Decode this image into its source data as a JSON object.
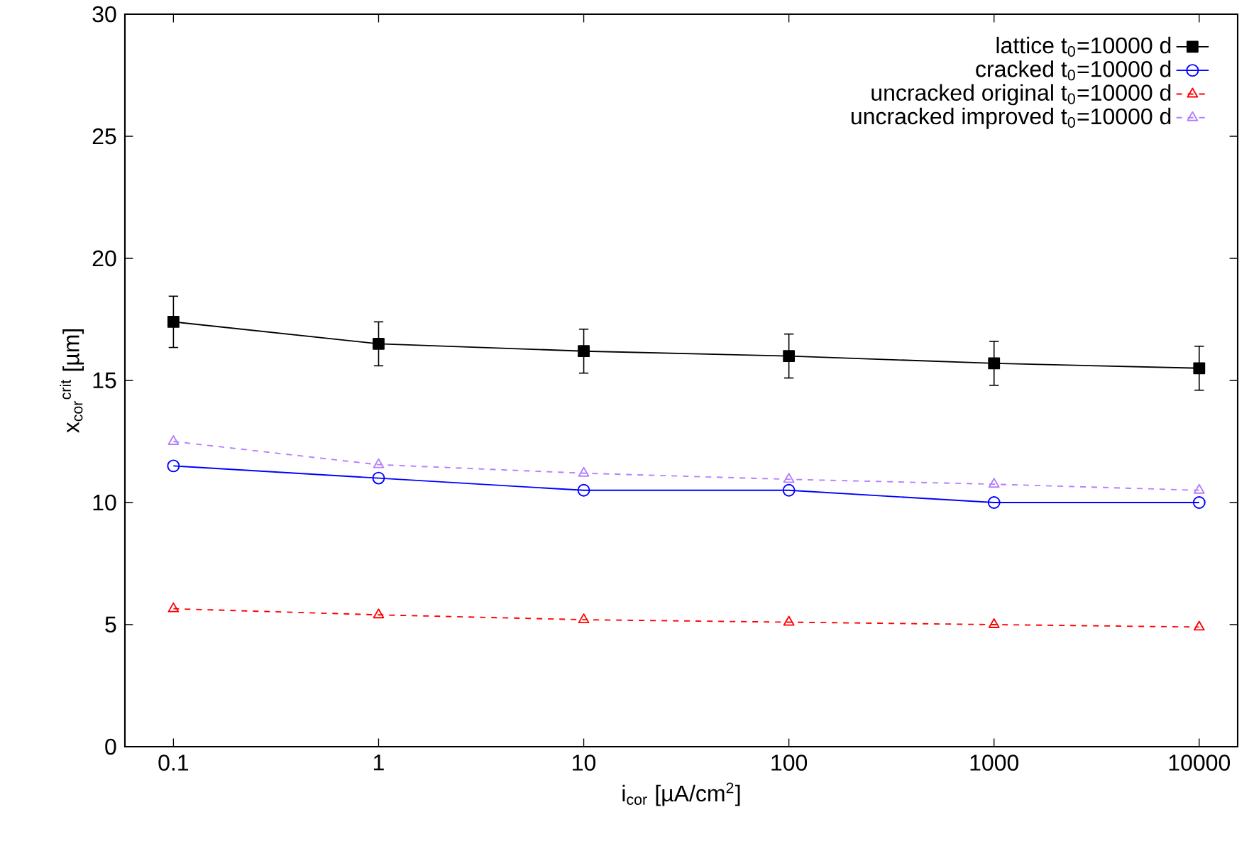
{
  "chart_data": {
    "type": "line",
    "xlabel": "i$_{cor}$ [µA/cm$^{2}$]",
    "ylabel": "x$_{cor}$$^{crit}$ [µm]",
    "log": "x",
    "xlim": [
      0.058,
      15400
    ],
    "ylim": [
      0,
      30
    ],
    "xticks": [
      0.1,
      1,
      10,
      100,
      1000,
      10000
    ],
    "yticks": [
      0,
      5,
      10,
      15,
      20,
      25,
      30
    ],
    "x": [
      0.1,
      1,
      10,
      100,
      1000,
      10000
    ],
    "legend": "top right",
    "grid": false,
    "series": [
      {
        "name": "lattice t$_{0}$=10000 d",
        "color": "#000000",
        "marker": "square",
        "line_style": "solid",
        "values": [
          17.4,
          16.5,
          16.2,
          16.0,
          15.7,
          15.5
        ],
        "errors": [
          1.05,
          0.9,
          0.9,
          0.9,
          0.9,
          0.9
        ]
      },
      {
        "name": "cracked t$_{0}$=10000 d",
        "color": "#0000ff",
        "marker": "circle",
        "line_style": "solid",
        "values": [
          11.5,
          11.0,
          10.5,
          10.5,
          10.0,
          10.0
        ]
      },
      {
        "name": "uncracked original t$_{0}$=10000 d",
        "color": "#ff0000",
        "marker": "triangle",
        "line_style": "dashed",
        "values": [
          5.65,
          5.4,
          5.2,
          5.1,
          5.0,
          4.9
        ]
      },
      {
        "name": "uncracked improved t$_{0}$=10000 d",
        "color": "#b57eff",
        "marker": "triangle",
        "line_style": "dashed",
        "values": [
          12.5,
          11.55,
          11.2,
          10.95,
          10.75,
          10.5
        ]
      }
    ]
  }
}
